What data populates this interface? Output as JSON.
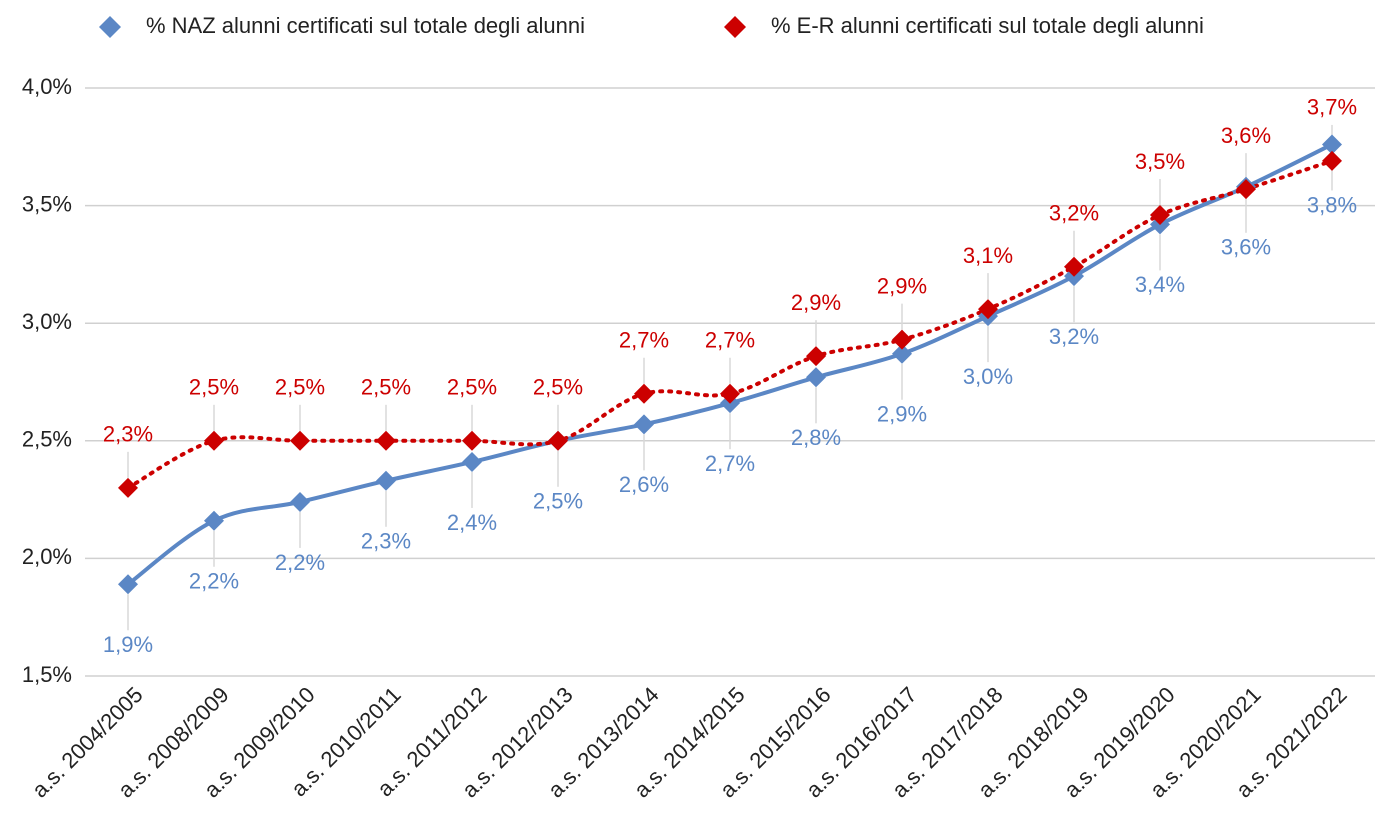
{
  "chart_data": {
    "type": "line",
    "categories": [
      "a.s. 2004/2005",
      "a.s. 2008/2009",
      "a.s. 2009/2010",
      "a.s. 2010/2011",
      "a.s. 2011/2012",
      "a.s. 2012/2013",
      "a.s. 2013/2014",
      "a.s. 2014/2015",
      "a.s. 2015/2016",
      "a.s. 2016/2017",
      "a.s. 2017/2018",
      "a.s. 2018/2019",
      "a.s. 2019/2020",
      "a.s. 2020/2021",
      "a.s. 2021/2022"
    ],
    "series": [
      {
        "name": "% NAZ alunni certificati sul totale degli alunni",
        "color": "#5b87c5",
        "line": "solid",
        "values": [
          1.89,
          2.16,
          2.24,
          2.33,
          2.41,
          2.5,
          2.57,
          2.66,
          2.77,
          2.87,
          3.03,
          3.2,
          3.42,
          3.58,
          3.76
        ],
        "value_labels": [
          "1,9%",
          "2,2%",
          "2,2%",
          "2,3%",
          "2,4%",
          "2,5%",
          "2,6%",
          "2,7%",
          "2,8%",
          "2,9%",
          "3,0%",
          "3,2%",
          "3,4%",
          "3,6%",
          "3,8%"
        ]
      },
      {
        "name": "% E-R alunni certificati sul totale degli alunni",
        "color": "#cc0000",
        "line": "dotted",
        "values": [
          2.3,
          2.5,
          2.5,
          2.5,
          2.5,
          2.5,
          2.7,
          2.7,
          2.86,
          2.93,
          3.06,
          3.24,
          3.46,
          3.57,
          3.69
        ],
        "value_labels": [
          "2,3%",
          "2,5%",
          "2,5%",
          "2,5%",
          "2,5%",
          "2,5%",
          "2,7%",
          "2,7%",
          "2,9%",
          "2,9%",
          "3,1%",
          "3,2%",
          "3,5%",
          "3,6%",
          "3,7%"
        ]
      }
    ],
    "ylim": [
      1.5,
      4.0
    ],
    "yticks": [
      {
        "value": 1.5,
        "label": "1,5%"
      },
      {
        "value": 2.0,
        "label": "2,0%"
      },
      {
        "value": 2.5,
        "label": "2,5%"
      },
      {
        "value": 3.0,
        "label": "3,0%"
      },
      {
        "value": 3.5,
        "label": "3,5%"
      },
      {
        "value": 4.0,
        "label": "4,0%"
      }
    ],
    "grid": true,
    "legend": "top"
  }
}
